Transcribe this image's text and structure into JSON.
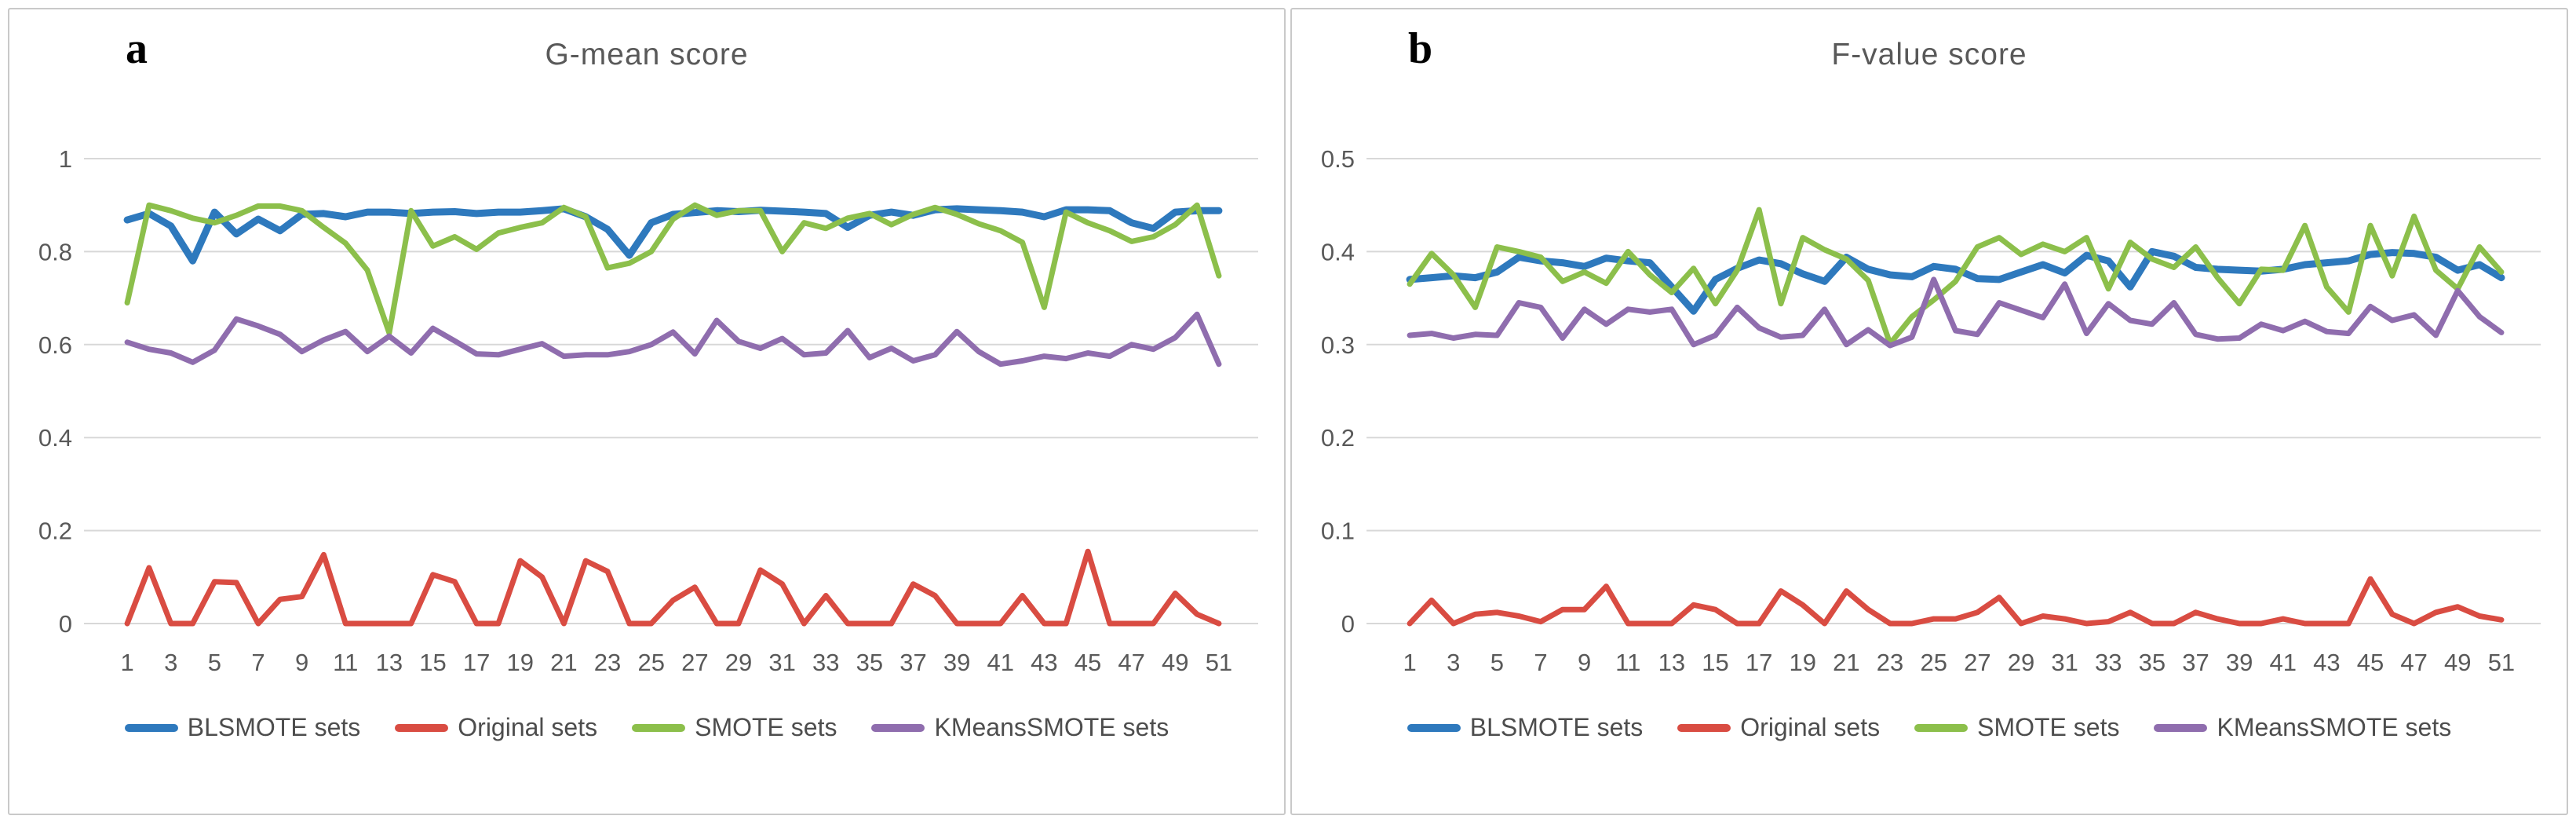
{
  "figure": {
    "description": "Two line charts comparing G-mean and F-value scores of BLSMOTE, Original, SMOTE and KMeansSMOTE data sets over 51 test sets"
  },
  "colors": {
    "blsmote_blue": "#2E79BD",
    "original_red": "#D94C42",
    "smote_green": "#8CBF4B",
    "kmeanssmote_purple": "#8F6DAE",
    "gridline": "#D8D8D8",
    "axis_text": "#595959",
    "panel_border": "#C9C9C9"
  },
  "chart_data": [
    {
      "type": "line",
      "panel_label": "a",
      "title": "G-mean score",
      "xlabel": "",
      "ylabel": "",
      "ylim": [
        0,
        1
      ],
      "yticks": [
        "1",
        "0.8",
        "0.6",
        "0.4",
        "0.2",
        "0"
      ],
      "x_tick_labels": [
        "1",
        "3",
        "5",
        "7",
        "9",
        "11",
        "13",
        "15",
        "17",
        "19",
        "21",
        "23",
        "25",
        "27",
        "29",
        "31",
        "33",
        "35",
        "37",
        "39",
        "41",
        "43",
        "45",
        "47",
        "49",
        "51"
      ],
      "grid": "horizontal",
      "legend_position": "bottom",
      "series": [
        {
          "name": "BLSMOTE sets",
          "color": "#2E79BD",
          "values": [
            0.868,
            0.882,
            0.855,
            0.78,
            0.885,
            0.838,
            0.87,
            0.845,
            0.88,
            0.882,
            0.875,
            0.885,
            0.885,
            0.882,
            0.885,
            0.886,
            0.882,
            0.885,
            0.885,
            0.888,
            0.892,
            0.875,
            0.848,
            0.792,
            0.862,
            0.88,
            0.884,
            0.888,
            0.886,
            0.889,
            0.887,
            0.885,
            0.882,
            0.852,
            0.878,
            0.885,
            0.878,
            0.89,
            0.892,
            0.89,
            0.888,
            0.885,
            0.875,
            0.89,
            0.89,
            0.888,
            0.862,
            0.85,
            0.885,
            0.888,
            0.888
          ]
        },
        {
          "name": "Original sets",
          "color": "#D94C42",
          "values": [
            0,
            0.12,
            0,
            0,
            0.09,
            0.088,
            0,
            0.052,
            0.058,
            0.148,
            0,
            0,
            0,
            0,
            0.105,
            0.09,
            0,
            0,
            0.135,
            0.1,
            0,
            0.135,
            0.112,
            0,
            0,
            0.05,
            0.078,
            0,
            0,
            0.115,
            0.085,
            0,
            0.06,
            0,
            0,
            0,
            0.085,
            0.06,
            0,
            0,
            0,
            0.06,
            0,
            0,
            0.155,
            0,
            0,
            0,
            0.065,
            0.02,
            0
          ]
        },
        {
          "name": "SMOTE sets",
          "color": "#8CBF4B",
          "values": [
            0.69,
            0.9,
            0.888,
            0.872,
            0.862,
            0.878,
            0.898,
            0.898,
            0.888,
            0.852,
            0.818,
            0.76,
            0.625,
            0.888,
            0.812,
            0.832,
            0.805,
            0.84,
            0.852,
            0.862,
            0.895,
            0.875,
            0.765,
            0.775,
            0.8,
            0.87,
            0.9,
            0.878,
            0.888,
            0.888,
            0.8,
            0.862,
            0.85,
            0.872,
            0.882,
            0.858,
            0.88,
            0.895,
            0.88,
            0.86,
            0.845,
            0.82,
            0.68,
            0.885,
            0.862,
            0.845,
            0.822,
            0.832,
            0.858,
            0.9,
            0.748
          ]
        },
        {
          "name": "KMeansSMOTE sets",
          "color": "#8F6DAE",
          "values": [
            0.605,
            0.59,
            0.582,
            0.562,
            0.588,
            0.655,
            0.64,
            0.622,
            0.585,
            0.61,
            0.628,
            0.585,
            0.618,
            0.582,
            0.635,
            0.608,
            0.58,
            0.578,
            0.59,
            0.602,
            0.575,
            0.578,
            0.578,
            0.585,
            0.6,
            0.627,
            0.58,
            0.652,
            0.607,
            0.592,
            0.613,
            0.578,
            0.582,
            0.63,
            0.572,
            0.592,
            0.565,
            0.578,
            0.628,
            0.585,
            0.558,
            0.565,
            0.575,
            0.57,
            0.582,
            0.575,
            0.6,
            0.59,
            0.615,
            0.665,
            0.558
          ]
        }
      ]
    },
    {
      "type": "line",
      "panel_label": "b",
      "title": "F-value score",
      "xlabel": "",
      "ylabel": "",
      "ylim": [
        0,
        0.5
      ],
      "yticks": [
        "0.5",
        "0.4",
        "0.3",
        "0.2",
        "0.1",
        "0"
      ],
      "x_tick_labels": [
        "1",
        "3",
        "5",
        "7",
        "9",
        "11",
        "13",
        "15",
        "17",
        "19",
        "21",
        "23",
        "25",
        "27",
        "29",
        "31",
        "33",
        "35",
        "37",
        "39",
        "41",
        "43",
        "45",
        "47",
        "49",
        "51"
      ],
      "grid": "horizontal",
      "legend_position": "bottom",
      "series": [
        {
          "name": "BLSMOTE sets",
          "color": "#2E79BD",
          "values": [
            0.37,
            0.372,
            0.374,
            0.372,
            0.378,
            0.394,
            0.39,
            0.388,
            0.384,
            0.393,
            0.39,
            0.388,
            0.362,
            0.336,
            0.37,
            0.382,
            0.391,
            0.387,
            0.376,
            0.368,
            0.394,
            0.381,
            0.375,
            0.373,
            0.384,
            0.381,
            0.371,
            0.37,
            0.378,
            0.386,
            0.377,
            0.396,
            0.39,
            0.362,
            0.4,
            0.395,
            0.383,
            0.381,
            0.38,
            0.379,
            0.381,
            0.386,
            0.388,
            0.39,
            0.397,
            0.399,
            0.398,
            0.394,
            0.38,
            0.386,
            0.372
          ]
        },
        {
          "name": "Original sets",
          "color": "#D94C42",
          "values": [
            0,
            0.025,
            0,
            0.01,
            0.012,
            0.008,
            0.002,
            0.015,
            0.015,
            0.04,
            0,
            0,
            0,
            0.02,
            0.015,
            0,
            0,
            0.035,
            0.02,
            0,
            0.035,
            0.015,
            0,
            0,
            0.005,
            0.005,
            0.012,
            0.028,
            0,
            0.008,
            0.005,
            0,
            0.002,
            0.012,
            0,
            0,
            0.012,
            0.005,
            0,
            0,
            0.005,
            0,
            0,
            0,
            0.048,
            0.01,
            0,
            0.012,
            0.018,
            0.008,
            0.004
          ]
        },
        {
          "name": "SMOTE sets",
          "color": "#8CBF4B",
          "values": [
            0.365,
            0.398,
            0.375,
            0.34,
            0.405,
            0.4,
            0.394,
            0.368,
            0.378,
            0.366,
            0.4,
            0.375,
            0.356,
            0.382,
            0.344,
            0.38,
            0.445,
            0.344,
            0.415,
            0.402,
            0.392,
            0.369,
            0.301,
            0.33,
            0.348,
            0.368,
            0.405,
            0.415,
            0.397,
            0.408,
            0.4,
            0.415,
            0.36,
            0.41,
            0.392,
            0.383,
            0.405,
            0.372,
            0.344,
            0.381,
            0.38,
            0.428,
            0.362,
            0.335,
            0.428,
            0.374,
            0.438,
            0.38,
            0.36,
            0.405,
            0.378
          ]
        },
        {
          "name": "KMeansSMOTE sets",
          "color": "#8F6DAE",
          "values": [
            0.31,
            0.312,
            0.307,
            0.311,
            0.31,
            0.345,
            0.34,
            0.307,
            0.338,
            0.322,
            0.338,
            0.335,
            0.338,
            0.3,
            0.31,
            0.34,
            0.318,
            0.308,
            0.31,
            0.338,
            0.3,
            0.316,
            0.299,
            0.308,
            0.37,
            0.315,
            0.311,
            0.345,
            0.337,
            0.329,
            0.365,
            0.312,
            0.344,
            0.326,
            0.322,
            0.345,
            0.311,
            0.306,
            0.307,
            0.322,
            0.315,
            0.325,
            0.314,
            0.312,
            0.341,
            0.326,
            0.332,
            0.31,
            0.358,
            0.33,
            0.313
          ]
        }
      ]
    }
  ]
}
